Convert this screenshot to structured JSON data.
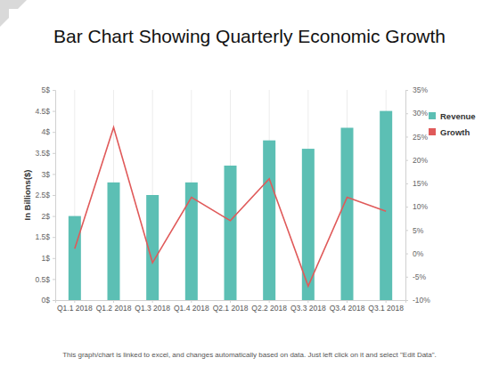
{
  "chart_data": {
    "type": "bar",
    "title": "Bar Chart Showing Quarterly Economic Growth",
    "y_label": "In Billions($)",
    "annotation": "This graph/chart is linked to excel, and changes automatically based on data. Just left click on it and select \"Edit Data\".",
    "categories": [
      "Q1.1 2018",
      "Q1.2 2018",
      "Q1.3 2018",
      "Q1.4 2018",
      "Q2.1 2018",
      "Q2.2 2018",
      "Q3.3 2018",
      "Q3.4 2018",
      "Q3.1 2018"
    ],
    "series": [
      {
        "name": "Revenue",
        "type": "bar",
        "color": "#5cbfb4",
        "values": [
          2.0,
          2.8,
          2.5,
          2.8,
          3.2,
          3.8,
          3.6,
          4.1,
          4.5
        ]
      },
      {
        "name": "Growth",
        "type": "line",
        "color": "#e05a5a",
        "axis": "y2",
        "values": [
          1,
          27,
          -2,
          12,
          7,
          16,
          -7,
          12,
          9
        ]
      }
    ],
    "ylim": [
      0,
      5
    ],
    "yticks": [
      {
        "value": 0,
        "label": "0$"
      },
      {
        "value": 0.5,
        "label": "0.5$"
      },
      {
        "value": 1,
        "label": "1$"
      },
      {
        "value": 1.5,
        "label": "1.5$"
      },
      {
        "value": 2,
        "label": "2$"
      },
      {
        "value": 2.5,
        "label": "2.5$"
      },
      {
        "value": 3,
        "label": "3$"
      },
      {
        "value": 3.5,
        "label": "3.5$"
      },
      {
        "value": 4,
        "label": "4$"
      },
      {
        "value": 4.5,
        "label": "4.5$"
      },
      {
        "value": 5,
        "label": "5$"
      }
    ],
    "y2lim": [
      -10,
      35
    ],
    "y2ticks": [
      {
        "value": -10,
        "label": "-10%"
      },
      {
        "value": -5,
        "label": "-5%"
      },
      {
        "value": 0,
        "label": "0%"
      },
      {
        "value": 5,
        "label": "5%"
      },
      {
        "value": 10,
        "label": "10%"
      },
      {
        "value": 15,
        "label": "15%"
      },
      {
        "value": 20,
        "label": "20%"
      },
      {
        "value": 25,
        "label": "25%"
      },
      {
        "value": 30,
        "label": "30%"
      },
      {
        "value": 35,
        "label": "35%"
      }
    ],
    "grid": true,
    "legend": "right"
  }
}
